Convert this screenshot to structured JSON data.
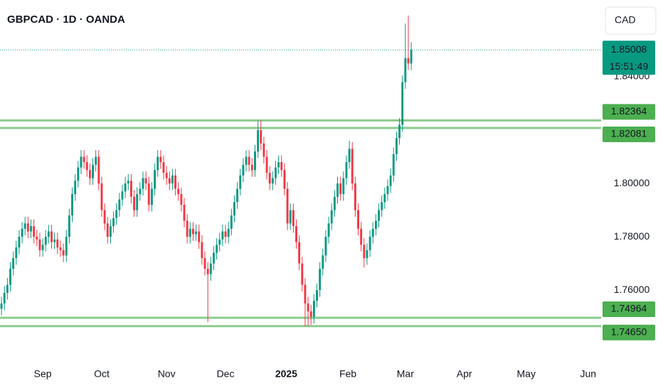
{
  "chart_data": {
    "type": "candlestick",
    "title": "GBPCAD · 1D · OANDA",
    "currency": "CAD",
    "up_color": "#089981",
    "down_color": "#f23645",
    "level_color": "#4caf50",
    "ylim": [
      1.7355,
      1.8688
    ],
    "yticks": [
      {
        "value": 1.76,
        "label": "1.76000"
      },
      {
        "value": 1.78,
        "label": "1.78000"
      },
      {
        "value": 1.8,
        "label": "1.80000"
      },
      {
        "value": 1.84,
        "label": "1.84000"
      }
    ],
    "xlim": [
      -0.5,
      203.4
    ],
    "xticks": [
      {
        "value": 14,
        "label": "Sep"
      },
      {
        "value": 34,
        "label": "Oct"
      },
      {
        "value": 56,
        "label": "Nov"
      },
      {
        "value": 76,
        "label": "Dec"
      },
      {
        "value": 96.6,
        "label": "2025"
      },
      {
        "value": 117.5,
        "label": "Feb"
      },
      {
        "value": 137,
        "label": "Mar"
      },
      {
        "value": 157,
        "label": "Apr"
      },
      {
        "value": 178,
        "label": "May"
      },
      {
        "value": 199,
        "label": "Jun"
      }
    ],
    "last_price": {
      "value": 1.85008,
      "label": "1.85008",
      "countdown": "15:51:49"
    },
    "levels": [
      {
        "value": 1.82364,
        "label": "1.82364"
      },
      {
        "value": 1.82081,
        "label": "1.82081"
      },
      {
        "value": 1.74964,
        "label": "1.74964"
      },
      {
        "value": 1.7465,
        "label": "1.74650"
      }
    ],
    "ohlc": [
      [
        1.753,
        1.7575,
        1.7505,
        1.755
      ],
      [
        1.755,
        1.7615,
        1.7525,
        1.759
      ],
      [
        1.759,
        1.7645,
        1.7565,
        1.762
      ],
      [
        1.762,
        1.7705,
        1.7595,
        1.768
      ],
      [
        1.768,
        1.7745,
        1.7655,
        1.772
      ],
      [
        1.772,
        1.7785,
        1.7695,
        1.776
      ],
      [
        1.776,
        1.7825,
        1.7735,
        1.78
      ],
      [
        1.78,
        1.7855,
        1.7775,
        1.783
      ],
      [
        1.783,
        1.7875,
        1.7805,
        1.785
      ],
      [
        1.785,
        1.7875,
        1.7795,
        1.782
      ],
      [
        1.782,
        1.7865,
        1.7795,
        1.784
      ],
      [
        1.784,
        1.7865,
        1.7775,
        1.78
      ],
      [
        1.78,
        1.7825,
        1.7765,
        1.779
      ],
      [
        1.779,
        1.7815,
        1.7725,
        1.775
      ],
      [
        1.775,
        1.7795,
        1.7725,
        1.777
      ],
      [
        1.777,
        1.7825,
        1.7745,
        1.78
      ],
      [
        1.78,
        1.7845,
        1.7775,
        1.782
      ],
      [
        1.782,
        1.7845,
        1.7755,
        1.778
      ],
      [
        1.778,
        1.7815,
        1.7755,
        1.779
      ],
      [
        1.779,
        1.7815,
        1.7735,
        1.776
      ],
      [
        1.776,
        1.7785,
        1.7725,
        1.775
      ],
      [
        1.775,
        1.7775,
        1.7705,
        1.773
      ],
      [
        1.773,
        1.7825,
        1.7705,
        1.78
      ],
      [
        1.78,
        1.7905,
        1.7775,
        1.788
      ],
      [
        1.788,
        1.7985,
        1.7855,
        1.796
      ],
      [
        1.796,
        1.8035,
        1.7935,
        1.801
      ],
      [
        1.801,
        1.8085,
        1.7985,
        1.806
      ],
      [
        1.806,
        1.8125,
        1.8035,
        1.81
      ],
      [
        1.81,
        1.8125,
        1.8055,
        1.808
      ],
      [
        1.808,
        1.8105,
        1.8025,
        1.805
      ],
      [
        1.805,
        1.8075,
        1.7995,
        1.802
      ],
      [
        1.802,
        1.8095,
        1.7995,
        1.807
      ],
      [
        1.807,
        1.8125,
        1.8045,
        1.81
      ],
      [
        1.81,
        1.8125,
        1.7975,
        1.8
      ],
      [
        1.8,
        1.8025,
        1.7875,
        1.79
      ],
      [
        1.79,
        1.7925,
        1.7825,
        1.785
      ],
      [
        1.785,
        1.7875,
        1.7775,
        1.78
      ],
      [
        1.78,
        1.7865,
        1.7775,
        1.784
      ],
      [
        1.784,
        1.7895,
        1.7815,
        1.787
      ],
      [
        1.787,
        1.7925,
        1.7845,
        1.79
      ],
      [
        1.79,
        1.7965,
        1.7875,
        1.794
      ],
      [
        1.794,
        1.7995,
        1.7915,
        1.797
      ],
      [
        1.797,
        1.8025,
        1.7945,
        1.8
      ],
      [
        1.8,
        1.8035,
        1.7975,
        1.801
      ],
      [
        1.801,
        1.8035,
        1.7925,
        1.795
      ],
      [
        1.795,
        1.7975,
        1.7875,
        1.79
      ],
      [
        1.79,
        1.7985,
        1.7875,
        1.796
      ],
      [
        1.796,
        1.8005,
        1.7935,
        1.798
      ],
      [
        1.798,
        1.8045,
        1.7955,
        1.802
      ],
      [
        1.802,
        1.8045,
        1.7975,
        1.8
      ],
      [
        1.8,
        1.8025,
        1.7895,
        1.792
      ],
      [
        1.792,
        1.8005,
        1.7895,
        1.798
      ],
      [
        1.798,
        1.8075,
        1.7955,
        1.805
      ],
      [
        1.805,
        1.8125,
        1.8025,
        1.81
      ],
      [
        1.81,
        1.8125,
        1.8055,
        1.808
      ],
      [
        1.808,
        1.8105,
        1.8015,
        1.804
      ],
      [
        1.804,
        1.8065,
        1.7995,
        1.802
      ],
      [
        1.802,
        1.8045,
        1.7975,
        1.8
      ],
      [
        1.8,
        1.8055,
        1.7975,
        1.803
      ],
      [
        1.803,
        1.8055,
        1.7955,
        1.798
      ],
      [
        1.798,
        1.8005,
        1.7935,
        1.796
      ],
      [
        1.796,
        1.7985,
        1.7895,
        1.792
      ],
      [
        1.792,
        1.7945,
        1.7835,
        1.786
      ],
      [
        1.786,
        1.7885,
        1.7775,
        1.78
      ],
      [
        1.78,
        1.7855,
        1.7775,
        1.783
      ],
      [
        1.783,
        1.7855,
        1.7785,
        1.781
      ],
      [
        1.781,
        1.7845,
        1.7785,
        1.782
      ],
      [
        1.782,
        1.7845,
        1.7755,
        1.778
      ],
      [
        1.778,
        1.7805,
        1.7695,
        1.772
      ],
      [
        1.772,
        1.7745,
        1.7655,
        1.768
      ],
      [
        1.768,
        1.7705,
        1.748,
        1.766
      ],
      [
        1.766,
        1.7725,
        1.7635,
        1.77
      ],
      [
        1.77,
        1.7765,
        1.7675,
        1.774
      ],
      [
        1.774,
        1.7795,
        1.7715,
        1.777
      ],
      [
        1.777,
        1.7815,
        1.7745,
        1.779
      ],
      [
        1.779,
        1.7845,
        1.7765,
        1.782
      ],
      [
        1.782,
        1.7845,
        1.7775,
        1.78
      ],
      [
        1.78,
        1.7855,
        1.7775,
        1.783
      ],
      [
        1.783,
        1.7905,
        1.7805,
        1.788
      ],
      [
        1.788,
        1.7955,
        1.7855,
        1.793
      ],
      [
        1.793,
        1.8005,
        1.7905,
        1.798
      ],
      [
        1.798,
        1.8055,
        1.7955,
        1.803
      ],
      [
        1.803,
        1.8095,
        1.8005,
        1.807
      ],
      [
        1.807,
        1.8125,
        1.8045,
        1.81
      ],
      [
        1.81,
        1.8125,
        1.8045,
        1.807
      ],
      [
        1.807,
        1.8095,
        1.8025,
        1.805
      ],
      [
        1.805,
        1.8145,
        1.8025,
        1.812
      ],
      [
        1.812,
        1.8236,
        1.8095,
        1.82
      ],
      [
        1.82,
        1.8236,
        1.8125,
        1.815
      ],
      [
        1.815,
        1.8175,
        1.8075,
        1.81
      ],
      [
        1.81,
        1.8125,
        1.8015,
        1.804
      ],
      [
        1.804,
        1.8065,
        1.7975,
        1.8
      ],
      [
        1.8,
        1.8045,
        1.7975,
        1.802
      ],
      [
        1.802,
        1.8085,
        1.7995,
        1.806
      ],
      [
        1.806,
        1.8105,
        1.8035,
        1.808
      ],
      [
        1.808,
        1.8105,
        1.8025,
        1.805
      ],
      [
        1.805,
        1.8075,
        1.7955,
        1.798
      ],
      [
        1.798,
        1.8005,
        1.7825,
        1.785
      ],
      [
        1.785,
        1.7925,
        1.7825,
        1.79
      ],
      [
        1.79,
        1.7925,
        1.7815,
        1.784
      ],
      [
        1.784,
        1.7865,
        1.7755,
        1.778
      ],
      [
        1.778,
        1.7805,
        1.7675,
        1.77
      ],
      [
        1.77,
        1.7725,
        1.7595,
        1.762
      ],
      [
        1.762,
        1.7645,
        1.7465,
        1.755
      ],
      [
        1.755,
        1.7575,
        1.7465,
        1.752
      ],
      [
        1.752,
        1.7545,
        1.747,
        1.75
      ],
      [
        1.75,
        1.7585,
        1.7475,
        1.756
      ],
      [
        1.756,
        1.7625,
        1.7535,
        1.76
      ],
      [
        1.76,
        1.7705,
        1.7575,
        1.768
      ],
      [
        1.768,
        1.7755,
        1.7655,
        1.773
      ],
      [
        1.773,
        1.7825,
        1.7705,
        1.78
      ],
      [
        1.78,
        1.7875,
        1.7775,
        1.785
      ],
      [
        1.785,
        1.7925,
        1.7825,
        1.79
      ],
      [
        1.79,
        1.7975,
        1.7875,
        1.795
      ],
      [
        1.795,
        1.8025,
        1.7925,
        1.8
      ],
      [
        1.8,
        1.8025,
        1.7935,
        1.796
      ],
      [
        1.796,
        1.8045,
        1.7935,
        1.802
      ],
      [
        1.802,
        1.8105,
        1.7995,
        1.808
      ],
      [
        1.808,
        1.816,
        1.8055,
        1.813
      ],
      [
        1.813,
        1.8155,
        1.7975,
        1.8
      ],
      [
        1.8,
        1.8025,
        1.7875,
        1.79
      ],
      [
        1.79,
        1.7925,
        1.7805,
        1.783
      ],
      [
        1.783,
        1.7855,
        1.7745,
        1.777
      ],
      [
        1.777,
        1.7795,
        1.7685,
        1.772
      ],
      [
        1.772,
        1.7775,
        1.7695,
        1.775
      ],
      [
        1.775,
        1.7825,
        1.7725,
        1.78
      ],
      [
        1.78,
        1.7855,
        1.7775,
        1.783
      ],
      [
        1.783,
        1.7885,
        1.7805,
        1.786
      ],
      [
        1.786,
        1.7925,
        1.7835,
        1.79
      ],
      [
        1.79,
        1.7955,
        1.7875,
        1.793
      ],
      [
        1.793,
        1.7985,
        1.7905,
        1.796
      ],
      [
        1.796,
        1.8015,
        1.7935,
        1.799
      ],
      [
        1.799,
        1.8055,
        1.7965,
        1.803
      ],
      [
        1.803,
        1.8135,
        1.8005,
        1.811
      ],
      [
        1.811,
        1.8195,
        1.8085,
        1.817
      ],
      [
        1.817,
        1.8245,
        1.8145,
        1.822
      ],
      [
        1.822,
        1.8405,
        1.8195,
        1.838
      ],
      [
        1.838,
        1.86,
        1.8355,
        1.847
      ],
      [
        1.847,
        1.863,
        1.8425,
        1.845
      ],
      [
        1.845,
        1.853,
        1.8425,
        1.8501
      ]
    ]
  }
}
